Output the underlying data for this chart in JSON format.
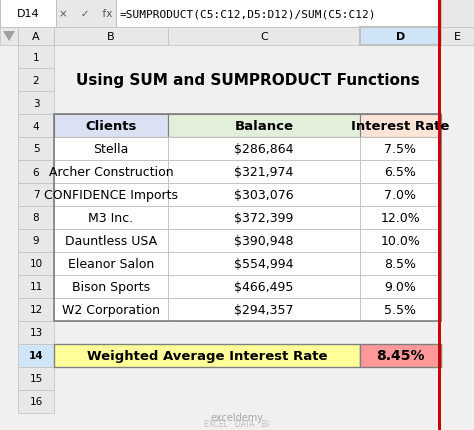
{
  "title": "Using SUM and SUMPRODUCT Functions",
  "formula_bar_cell": "D14",
  "formula_bar_text": "=SUMPRODUCT(C5:C12,D5:D12)/SUM(C5:C12)",
  "headers": [
    "Clients",
    "Balance",
    "Interest Rate"
  ],
  "rows": [
    [
      "Stella",
      "$286,864",
      "7.5%"
    ],
    [
      "Archer Construction",
      "$321,974",
      "6.5%"
    ],
    [
      "CONFIDENCE Imports",
      "$303,076",
      "7.0%"
    ],
    [
      "M3 Inc.",
      "$372,399",
      "12.0%"
    ],
    [
      "Dauntless USA",
      "$390,948",
      "10.0%"
    ],
    [
      "Eleanor Salon",
      "$554,994",
      "8.5%"
    ],
    [
      "Bison Sports",
      "$466,495",
      "9.0%"
    ],
    [
      "W2 Corporation",
      "$294,357",
      "5.5%"
    ]
  ],
  "footer_label": "Weighted Average Interest Rate",
  "footer_value": "8.45%",
  "header_bg_clients": "#d9e1f2",
  "header_bg_balance": "#e2efda",
  "header_bg_interest": "#fce4d6",
  "footer_bg": "#ffff99",
  "footer_value_bg": "#ff9999",
  "row_bg": "#ffffff",
  "border_color": "#bfbfbf",
  "table_border_color": "#7f7f7f",
  "red_line_color": "#ff0000",
  "formula_bar_bg": "#ffffff",
  "formula_bar_border": "#d0d0d0",
  "title_fontsize": 11,
  "cell_fontsize": 9,
  "header_fontsize": 9.5
}
